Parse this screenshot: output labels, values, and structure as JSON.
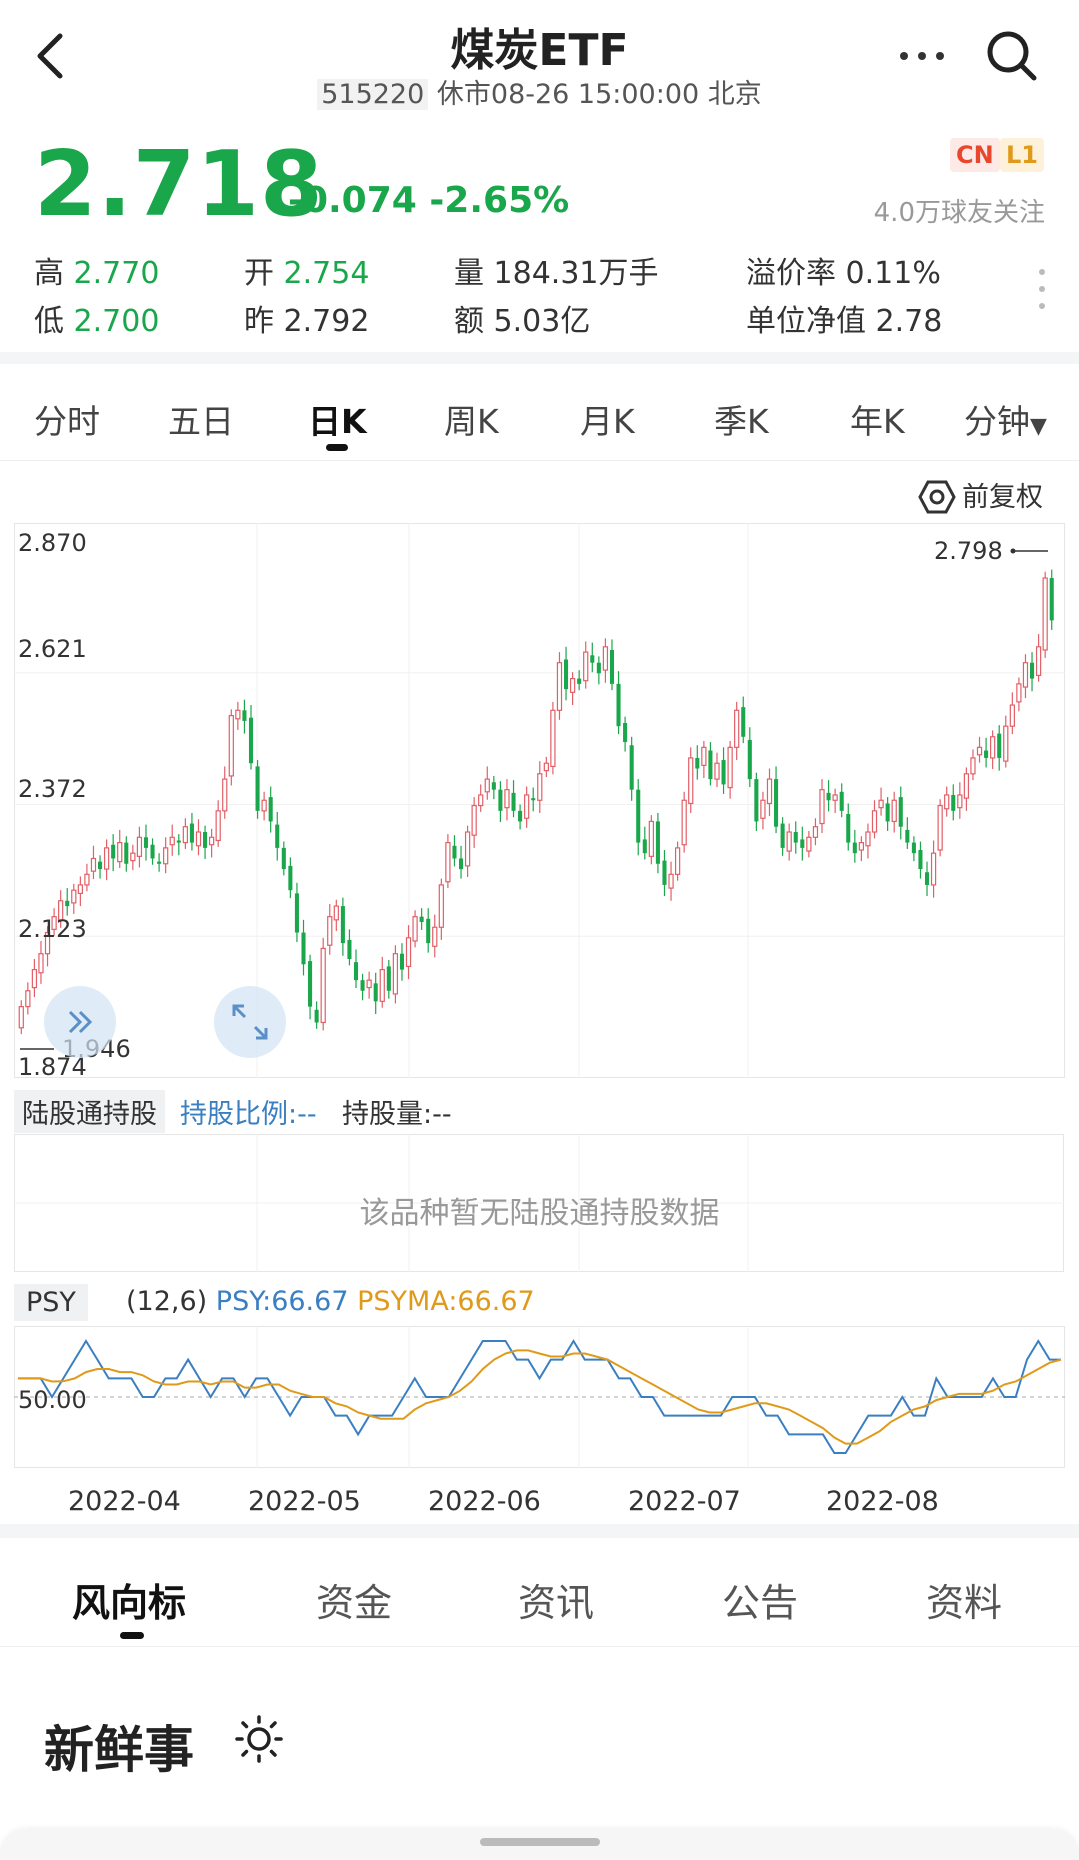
{
  "header": {
    "title": "煤炭ETF",
    "code": "515220",
    "status": "休市08-26 15:00:00 北京"
  },
  "quote": {
    "price": "2.718",
    "change": "-0.074",
    "change_pct": "-2.65%",
    "badges": [
      "CN",
      "L1"
    ],
    "followers": "4.0万球友关注",
    "stats": {
      "high_label": "高",
      "high": "2.770",
      "open_label": "开",
      "open": "2.754",
      "volume": "量 184.31万手",
      "premium": "溢价率 0.11%",
      "low_label": "低",
      "low": "2.700",
      "prev_label": "昨",
      "prev": "2.792",
      "amount": "额 5.03亿",
      "nav": "单位净值 2.78"
    }
  },
  "tabs": [
    "分时",
    "五日",
    "日K",
    "周K",
    "月K",
    "季K",
    "年K",
    "分钟"
  ],
  "adjust_label": "前复权",
  "colors": {
    "up": "#e25f67",
    "down": "#1aa64a",
    "psy": "#3a7fc1",
    "psyma": "#e09a1a"
  },
  "kline": {
    "axis_labels": [
      "2.870",
      "2.621",
      "2.372",
      "2.123",
      "1.874"
    ],
    "max_label": "2.798",
    "min_label": "1.946",
    "closes": [
      1.99,
      2.02,
      2.06,
      2.09,
      2.13,
      2.16,
      2.19,
      2.18,
      2.21,
      2.22,
      2.24,
      2.27,
      2.25,
      2.29,
      2.27,
      2.3,
      2.26,
      2.28,
      2.31,
      2.29,
      2.27,
      2.26,
      2.29,
      2.31,
      2.3,
      2.33,
      2.3,
      2.32,
      2.29,
      2.31,
      2.36,
      2.42,
      2.54,
      2.55,
      2.53,
      2.45,
      2.36,
      2.38,
      2.34,
      2.29,
      2.25,
      2.21,
      2.13,
      2.07,
      1.99,
      1.96,
      2.1,
      2.16,
      2.18,
      2.11,
      2.08,
      2.04,
      2.02,
      2.04,
      2.0,
      2.06,
      2.02,
      2.09,
      2.06,
      2.12,
      2.16,
      2.15,
      2.11,
      2.14,
      2.22,
      2.3,
      2.27,
      2.25,
      2.32,
      2.37,
      2.39,
      2.42,
      2.4,
      2.36,
      2.4,
      2.36,
      2.34,
      2.39,
      2.38,
      2.43,
      2.45,
      2.55,
      2.64,
      2.59,
      2.61,
      2.6,
      2.66,
      2.64,
      2.62,
      2.67,
      2.6,
      2.52,
      2.49,
      2.4,
      2.3,
      2.28,
      2.34,
      2.26,
      2.22,
      2.24,
      2.29,
      2.38,
      2.46,
      2.44,
      2.48,
      2.42,
      2.45,
      2.41,
      2.48,
      2.55,
      2.5,
      2.42,
      2.34,
      2.38,
      2.42,
      2.33,
      2.29,
      2.32,
      2.3,
      2.29,
      2.31,
      2.33,
      2.4,
      2.38,
      2.39,
      2.36,
      2.3,
      2.28,
      2.3,
      2.32,
      2.36,
      2.38,
      2.34,
      2.38,
      2.33,
      2.3,
      2.28,
      2.25,
      2.22,
      2.28,
      2.37,
      2.39,
      2.36,
      2.39,
      2.43,
      2.46,
      2.48,
      2.46,
      2.5,
      2.46,
      2.52,
      2.56,
      2.6,
      2.64,
      2.61,
      2.67,
      2.8,
      2.72
    ],
    "x_labels": [
      "2022-04",
      "2022-05",
      "2022-06",
      "2022-07",
      "2022-08"
    ]
  },
  "hold": {
    "label": "陆股通持股",
    "ratio": "持股比例:--",
    "qty": "持股量:--",
    "empty": "该品种暂无陆股通持股数据"
  },
  "psy": {
    "label": "PSY",
    "params": "(12,6)",
    "psy_text": "PSY:66.67",
    "psyma_text": "PSYMA:66.67",
    "axis_label": "50.00",
    "psy_values": [
      58.3,
      58.3,
      58.3,
      50,
      58.3,
      66.7,
      75,
      66.7,
      58.3,
      58.3,
      58.3,
      50,
      50,
      58.3,
      58.3,
      66.7,
      58.3,
      50,
      58.3,
      58.3,
      50,
      58.3,
      58.3,
      50,
      41.7,
      50,
      50,
      50,
      41.7,
      41.7,
      33.3,
      41.7,
      41.7,
      41.7,
      50,
      58.3,
      50,
      50,
      50,
      58.3,
      66.7,
      75,
      75,
      75,
      66.7,
      66.7,
      58.3,
      66.7,
      66.7,
      75,
      66.7,
      66.7,
      66.7,
      58.3,
      58.3,
      50,
      50,
      41.7,
      41.7,
      41.7,
      41.7,
      41.7,
      41.7,
      50,
      50,
      50,
      41.7,
      41.7,
      33.3,
      33.3,
      33.3,
      33.3,
      25,
      25,
      33.3,
      41.7,
      41.7,
      41.7,
      50,
      41.7,
      41.7,
      58.3,
      50,
      50,
      50,
      50,
      58.3,
      50,
      50,
      66.7,
      75,
      66.7,
      66.7
    ],
    "psyma_values": [
      58.3,
      58.3,
      58.3,
      56.9,
      57.0,
      58.3,
      61.1,
      62.5,
      62.5,
      61.1,
      61.1,
      59.7,
      56.9,
      55.6,
      55.6,
      56.9,
      56.9,
      55.6,
      56.9,
      56.9,
      54.2,
      54.2,
      55.6,
      55.6,
      52.8,
      51.4,
      50,
      50,
      47.2,
      45.8,
      43.1,
      41.7,
      40.3,
      40.3,
      40.3,
      44.4,
      47.2,
      48.6,
      50,
      52.8,
      56.9,
      62.5,
      66.7,
      69.4,
      70.8,
      70.8,
      69.4,
      68.1,
      68.1,
      69.4,
      69.4,
      68.1,
      66.7,
      63.9,
      61.1,
      58.3,
      55.6,
      52.8,
      50,
      47.2,
      44.4,
      43.1,
      43.1,
      44.4,
      45.8,
      47.2,
      47.2,
      45.8,
      44.4,
      41.7,
      38.9,
      36.1,
      31.9,
      29.2,
      29.2,
      31.9,
      34.7,
      38.9,
      41.7,
      44.4,
      45.8,
      48.6,
      50,
      51.4,
      51.4,
      51.4,
      52.8,
      55.6,
      56.9,
      59.7,
      62.5,
      65.3,
      66.7
    ]
  },
  "bottom_tabs": [
    "风向标",
    "资金",
    "资讯",
    "公告",
    "资料"
  ],
  "news_title": "新鲜事",
  "icons": {
    "back": "back-arrow-icon",
    "more": "more-dots-icon",
    "search": "search-icon",
    "settings": "gear-icon",
    "sun": "sun-icon",
    "expand": "double-chevron-icon",
    "fullscreen": "fullscreen-icon"
  }
}
